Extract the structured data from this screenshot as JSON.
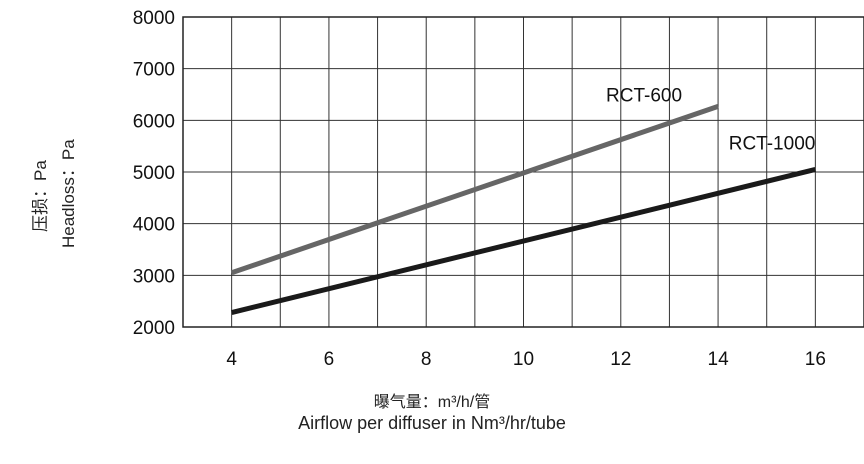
{
  "chart_data": {
    "type": "line",
    "xlabel_cn": "曝气量：m³/h/管",
    "xlabel_en": "Airflow per diffuser in Nm³/hr/tube",
    "ylabel_cn": "压损：Pa",
    "ylabel_en": "Headloss：Pa",
    "xlim": [
      3,
      17
    ],
    "ylim": [
      2000,
      8000
    ],
    "x_ticks": [
      4,
      6,
      8,
      10,
      12,
      14,
      16
    ],
    "y_ticks": [
      2000,
      3000,
      4000,
      5000,
      6000,
      7000,
      8000
    ],
    "grid": true,
    "series": [
      {
        "name": "RCT-600",
        "color": "#666666",
        "x": [
          4,
          14
        ],
        "y": [
          3050,
          6270
        ]
      },
      {
        "name": "RCT-1000",
        "color": "#1a1a1a",
        "x": [
          4,
          16
        ],
        "y": [
          2280,
          5050
        ]
      }
    ]
  }
}
